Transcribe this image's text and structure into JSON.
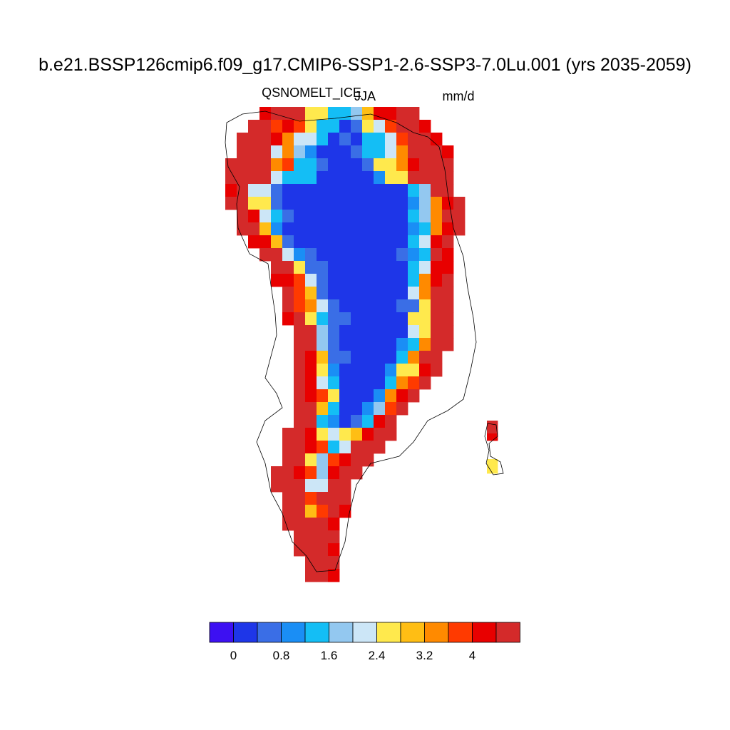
{
  "title": "b.e21.BSSP126cmip6.f09_g17.CMIP6-SSP1-2.6-SSP3-7.0Lu.001 (yrs 2035-2059)",
  "variable": "QSNOMELT_ICE",
  "season": "JJA",
  "units": "mm/d",
  "colorbar": {
    "colors": [
      "#3d10f2",
      "#1e36e8",
      "#3a6ee6",
      "#1a8ef5",
      "#14bef5",
      "#93c8f0",
      "#cce6f7",
      "#ffe94d",
      "#ffbe14",
      "#ff8a00",
      "#ff3a00",
      "#e80000",
      "#d42a2a"
    ],
    "tick_labels": [
      "0",
      "0.8",
      "1.6",
      "2.4",
      "3.2",
      "4"
    ]
  },
  "chart_data": {
    "type": "heatmap",
    "region": "Greenland",
    "title": "b.e21.BSSP126cmip6.f09_g17.CMIP6-SSP1-2.6-SSP3-7.0Lu.001 (yrs 2035-2059)",
    "variable": "QSNOMELT_ICE",
    "season": "JJA",
    "units": "mm/d",
    "levels": [
      0,
      0.4,
      0.8,
      1.2,
      1.6,
      2.0,
      2.4,
      2.8,
      3.2,
      3.6,
      4.0,
      4.4
    ],
    "pattern": "interior ice sheet ~0.4-0.8 mm/d, grading through 1-3 mm/d to >4.4 mm/d along the margins"
  }
}
